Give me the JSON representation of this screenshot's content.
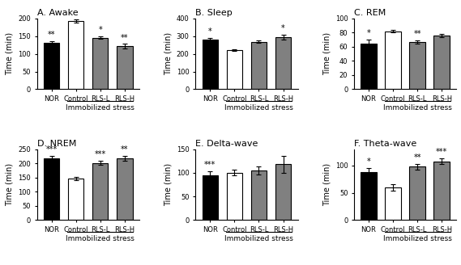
{
  "chart_data": [
    {
      "type": "bar",
      "title": "A. Awake",
      "ylabel": "Time (min)",
      "xlabel": "Immobilized stress",
      "categories": [
        "NOR",
        "Control",
        "RLS-L",
        "RLS-H"
      ],
      "values": [
        132,
        193,
        146,
        122
      ],
      "errors": [
        5,
        4,
        4,
        6
      ],
      "colors": [
        "#000000",
        "#ffffff",
        "#808080",
        "#808080"
      ],
      "ylim": [
        0,
        200
      ],
      "yticks": [
        0,
        50,
        100,
        150,
        200
      ],
      "annotations": [
        {
          "category": "NOR",
          "text": "**"
        },
        {
          "category": "RLS-L",
          "text": "*"
        },
        {
          "category": "RLS-H",
          "text": "**"
        }
      ]
    },
    {
      "type": "bar",
      "title": "B. Sleep",
      "ylabel": "Time (min)",
      "xlabel": "Immobilized stress",
      "categories": [
        "NOR",
        "Control",
        "RLS-L",
        "RLS-H"
      ],
      "values": [
        283,
        222,
        268,
        295
      ],
      "errors": [
        8,
        5,
        7,
        15
      ],
      "colors": [
        "#000000",
        "#ffffff",
        "#808080",
        "#808080"
      ],
      "ylim": [
        0,
        400
      ],
      "yticks": [
        0,
        100,
        200,
        300,
        400
      ],
      "annotations": [
        {
          "category": "NOR",
          "text": "*"
        },
        {
          "category": "RLS-H",
          "text": "*"
        }
      ]
    },
    {
      "type": "bar",
      "title": "C. REM",
      "ylabel": "Time (min)",
      "xlabel": "Immobilized stress",
      "categories": [
        "NOR",
        "Control",
        "RLS-L",
        "RLS-H"
      ],
      "values": [
        65,
        82,
        67,
        76
      ],
      "errors": [
        5,
        2,
        2,
        2
      ],
      "colors": [
        "#000000",
        "#ffffff",
        "#808080",
        "#808080"
      ],
      "ylim": [
        0,
        100
      ],
      "yticks": [
        0,
        20,
        40,
        60,
        80,
        100
      ],
      "annotations": [
        {
          "category": "NOR",
          "text": "*"
        },
        {
          "category": "RLS-L",
          "text": "**"
        }
      ]
    },
    {
      "type": "bar",
      "title": "D. NREM",
      "ylabel": "Time (min)",
      "xlabel": "Immobilized stress",
      "categories": [
        "NOR",
        "Control",
        "RLS-L",
        "RLS-H"
      ],
      "values": [
        218,
        147,
        202,
        218
      ],
      "errors": [
        8,
        5,
        8,
        8
      ],
      "colors": [
        "#000000",
        "#ffffff",
        "#808080",
        "#808080"
      ],
      "ylim": [
        0,
        250
      ],
      "yticks": [
        0,
        50,
        100,
        150,
        200,
        250
      ],
      "annotations": [
        {
          "category": "NOR",
          "text": "***"
        },
        {
          "category": "RLS-L",
          "text": "***"
        },
        {
          "category": "RLS-H",
          "text": "**"
        }
      ]
    },
    {
      "type": "bar",
      "title": "E. Delta-wave",
      "ylabel": "Time (min)",
      "xlabel": "Immobilized stress",
      "categories": [
        "NOR",
        "Control",
        "RLS-L",
        "RLS-H"
      ],
      "values": [
        95,
        100,
        105,
        118
      ],
      "errors": [
        8,
        6,
        8,
        18
      ],
      "colors": [
        "#000000",
        "#ffffff",
        "#808080",
        "#808080"
      ],
      "ylim": [
        0,
        150
      ],
      "yticks": [
        0,
        50,
        100,
        150
      ],
      "annotations": [
        {
          "category": "NOR",
          "text": "***"
        }
      ]
    },
    {
      "type": "bar",
      "title": "F. Theta-wave",
      "ylabel": "Time (min)",
      "xlabel": "Immobilized stress",
      "categories": [
        "NOR",
        "Control",
        "RLS-L",
        "RLS-H"
      ],
      "values": [
        88,
        60,
        98,
        108
      ],
      "errors": [
        8,
        6,
        5,
        5
      ],
      "colors": [
        "#000000",
        "#ffffff",
        "#808080",
        "#808080"
      ],
      "ylim": [
        0,
        130
      ],
      "yticks": [
        0,
        50,
        100
      ],
      "annotations": [
        {
          "category": "NOR",
          "text": "*"
        },
        {
          "category": "RLS-L",
          "text": "**"
        },
        {
          "category": "RLS-H",
          "text": "***"
        }
      ]
    }
  ]
}
